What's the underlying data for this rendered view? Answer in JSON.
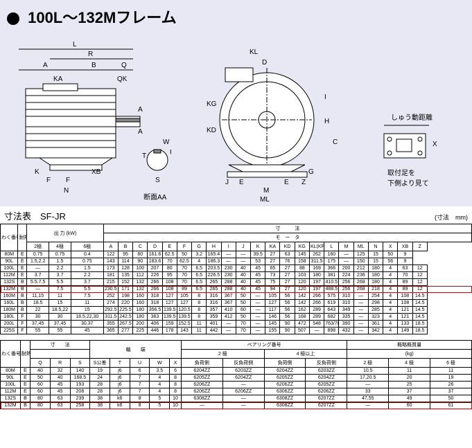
{
  "header": {
    "title": "100L～132Mフレーム"
  },
  "diagram": {
    "labels": {
      "L": "L",
      "R": "R",
      "A": "A",
      "B": "B",
      "Q": "Q",
      "KA": "KA",
      "QK": "QK",
      "K": "K",
      "XB": "XB",
      "F": "F",
      "N": "N",
      "W": "W",
      "T": "T",
      "U": "U",
      "S": "S",
      "section": "断面AA",
      "KL": "KL",
      "D": "D",
      "KG": "KG",
      "KD": "KD",
      "J": "J",
      "E": "E",
      "M": "M",
      "ML": "ML",
      "H": "H",
      "C": "C",
      "I": "I",
      "G": "G",
      "Z": "Z",
      "X": "X",
      "slide": "しゅう動距離",
      "foot": "取付足を\n下側より見て"
    }
  },
  "table1": {
    "title": "寸法表　SF-JR",
    "unit": "(寸法　mm)",
    "headers": {
      "h1": "わく番号",
      "h2": "耐熱",
      "h3": "出 力 (kW)",
      "h4": "寸　　　法",
      "h5": "モ　ー　タ",
      "c1": "2極",
      "c2": "4極",
      "c3": "6極",
      "A": "A",
      "B": "B",
      "C": "C",
      "D": "D",
      "E": "E",
      "F": "F",
      "G": "G",
      "H": "H",
      "I": "I",
      "J": "J",
      "K": "K",
      "KA": "KA",
      "KD": "KD",
      "KG": "KG",
      "KLKP": "KL(KP)",
      "L": "L",
      "M": "M",
      "ML": "ML",
      "N": "N",
      "X": "X",
      "XB": "XB",
      "Z": "Z"
    },
    "rows": [
      {
        "hl": false,
        "v": [
          "80M",
          "E",
          "0.75",
          "0.75",
          "0.4",
          "122",
          "95",
          "80",
          "161.6",
          "62.5",
          "50",
          "3.2",
          "165.4",
          "—",
          "—",
          "39.5",
          "27",
          "63",
          "145",
          "262",
          "160",
          "—",
          "125",
          "15",
          "50",
          "9"
        ]
      },
      {
        "hl": false,
        "v": [
          "90L",
          "E",
          "1.5,2.2",
          "1.5",
          "0.75",
          "143",
          "114",
          "90",
          "183.6",
          "70",
          "62.5",
          "4",
          "186.3",
          "—",
          "—",
          "53",
          "27",
          "76",
          "158",
          "311.5",
          "175",
          "—",
          "150",
          "15",
          "56",
          "9"
        ]
      },
      {
        "hl": false,
        "v": [
          "100L",
          "E",
          "—",
          "2.2",
          "1.5",
          "173",
          "128",
          "100",
          "207",
          "80",
          "70",
          "6.5",
          "203.5",
          "230",
          "40",
          "45",
          "65",
          "27",
          "88",
          "169",
          "366",
          "200",
          "212",
          "180",
          "4",
          "63",
          "12"
        ]
      },
      {
        "hl": false,
        "v": [
          "112M",
          "E",
          "3.7",
          "3.7",
          "2.2",
          "181",
          "135",
          "112",
          "226",
          "95",
          "70",
          "6.5",
          "226.5",
          "230",
          "40",
          "45",
          "73",
          "27",
          "103",
          "180",
          "381",
          "224",
          "236",
          "180",
          "4",
          "70",
          "12"
        ]
      },
      {
        "hl": false,
        "v": [
          "132S",
          "B",
          "5.5,7.5",
          "5.5",
          "3.7",
          "215",
          "152",
          "132",
          "266",
          "108",
          "70",
          "6.5",
          "265",
          "288",
          "40",
          "45",
          "75",
          "27",
          "120",
          "197",
          "410.5",
          "256",
          "268",
          "180",
          "4",
          "89",
          "12"
        ]
      },
      {
        "hl": true,
        "v": [
          "132M",
          "B",
          "—",
          "7.5",
          "5.5",
          "230.5",
          "171",
          "132",
          "266",
          "108",
          "89",
          "6.5",
          "265",
          "288",
          "40",
          "45",
          "94",
          "27",
          "120",
          "197",
          "488.5",
          "256",
          "268",
          "218",
          "4",
          "89",
          "12"
        ]
      },
      {
        "hl": false,
        "v": [
          "160M",
          "B",
          "11,15",
          "11",
          "7.5",
          "252",
          "198",
          "160",
          "318",
          "127",
          "105",
          "8",
          "316",
          "367",
          "50",
          "—",
          "105",
          "56",
          "142",
          "266",
          "575",
          "310",
          "—",
          "254",
          "4",
          "108",
          "14.5"
        ]
      },
      {
        "hl": false,
        "v": [
          "160L",
          "B",
          "18.5",
          "15",
          "11",
          "274",
          "220",
          "160",
          "318",
          "127",
          "127",
          "8",
          "316",
          "367",
          "50",
          "—",
          "127",
          "56",
          "142",
          "266",
          "619",
          "310",
          "—",
          "298",
          "4",
          "108",
          "14.5"
        ]
      },
      {
        "hl": false,
        "v": [
          "180M",
          "B",
          "22",
          "18.5,22",
          "15",
          "292.5",
          "225.5",
          "180",
          "356.5",
          "139.5",
          "120.5",
          "8",
          "357",
          "410",
          "60",
          "—",
          "117",
          "56",
          "162",
          "289",
          "643",
          "349",
          "—",
          "285",
          "4",
          "121",
          "14.5"
        ]
      },
      {
        "hl": false,
        "v": [
          "180L",
          "F",
          "30",
          "30",
          "18.5,22,30",
          "311.5",
          "242.5",
          "180",
          "363",
          "139.5",
          "139.5",
          "8",
          "359",
          "412",
          "50",
          "—",
          "146",
          "56",
          "168",
          "289",
          "682",
          "335",
          "—",
          "323",
          "4",
          "121",
          "14.5"
        ]
      },
      {
        "hl": false,
        "v": [
          "200L",
          "F",
          "37,45",
          "37,45",
          "30,37",
          "355",
          "267.5",
          "200",
          "406",
          "159",
          "152.5",
          "11",
          "401",
          "—",
          "70",
          "—",
          "145",
          "90",
          "472",
          "548",
          "763/783",
          "390",
          "—",
          "361",
          "4",
          "133",
          "18.5"
        ]
      },
      {
        "hl": false,
        "v": [
          "225S",
          "F",
          "55",
          "55",
          "45",
          "365",
          "277",
          "225",
          "446",
          "178",
          "143",
          "11",
          "442",
          "—",
          "70",
          "—",
          "155",
          "90",
          "507",
          "—",
          "898",
          "432",
          "—",
          "342",
          "4",
          "149",
          "18.5"
        ]
      }
    ]
  },
  "table2": {
    "headers": {
      "h1": "わく番号",
      "h2": "耐熱",
      "h3": "寸　　法",
      "h4": "軸　　端",
      "h5": "ベアリング番号",
      "h6": "概略概質量",
      "h7": "2 極",
      "h8": "4 極以上",
      "h9": "(kg)",
      "h10": "負荷側",
      "h11": "反負荷側",
      "h12": "負荷側",
      "h13": "反負荷側",
      "h14": "2 極",
      "h15": "4 極",
      "h16": "6 極",
      "Q": "Q",
      "R": "R",
      "S": "S",
      "Sk": "S公差",
      "T": "T",
      "U": "U",
      "W": "W",
      "X": "X"
    },
    "rows": [
      {
        "hl": false,
        "v": [
          "80M",
          "E",
          "40",
          "32",
          "140",
          "19",
          "j6",
          "6",
          "3.5",
          "6",
          "6204ZZ",
          "6203ZZ",
          "6204ZZ",
          "6203ZZ",
          "10.5",
          "11",
          "11"
        ]
      },
      {
        "hl": false,
        "v": [
          "90L",
          "E",
          "50",
          "40",
          "168.5",
          "24",
          "j6",
          "7",
          "4",
          "8",
          "6205ZZ",
          "6204ZZ",
          "6205ZZ",
          "6204ZZ",
          "17,20.5",
          "20",
          "19"
        ]
      },
      {
        "hl": false,
        "v": [
          "100L",
          "E",
          "60",
          "45",
          "193",
          "28",
          "j6",
          "7",
          "4",
          "8",
          "6206ZZ",
          "—",
          "6206ZZ",
          "6205ZZ",
          "—",
          "25",
          "26"
        ]
      },
      {
        "hl": false,
        "v": [
          "112M",
          "E",
          "60",
          "45",
          "208",
          "28",
          "j6",
          "7",
          "4",
          "8",
          "6206ZZ",
          "6206ZZ",
          "6306ZZ",
          "6206ZZ",
          "33",
          "37",
          "37"
        ]
      },
      {
        "hl": false,
        "v": [
          "132S",
          "B",
          "80",
          "63",
          "239",
          "38",
          "k6",
          "8",
          "5",
          "10",
          "6308ZZ",
          "—",
          "6308ZZ",
          "6207ZZ",
          "47,55",
          "49",
          "50"
        ]
      },
      {
        "hl": true,
        "v": [
          "132M",
          "B",
          "80",
          "63",
          "258",
          "38",
          "k6",
          "8",
          "5",
          "10",
          "—",
          "—",
          "6308ZZ",
          "6207ZZ",
          "—",
          "60",
          "61"
        ]
      }
    ]
  }
}
